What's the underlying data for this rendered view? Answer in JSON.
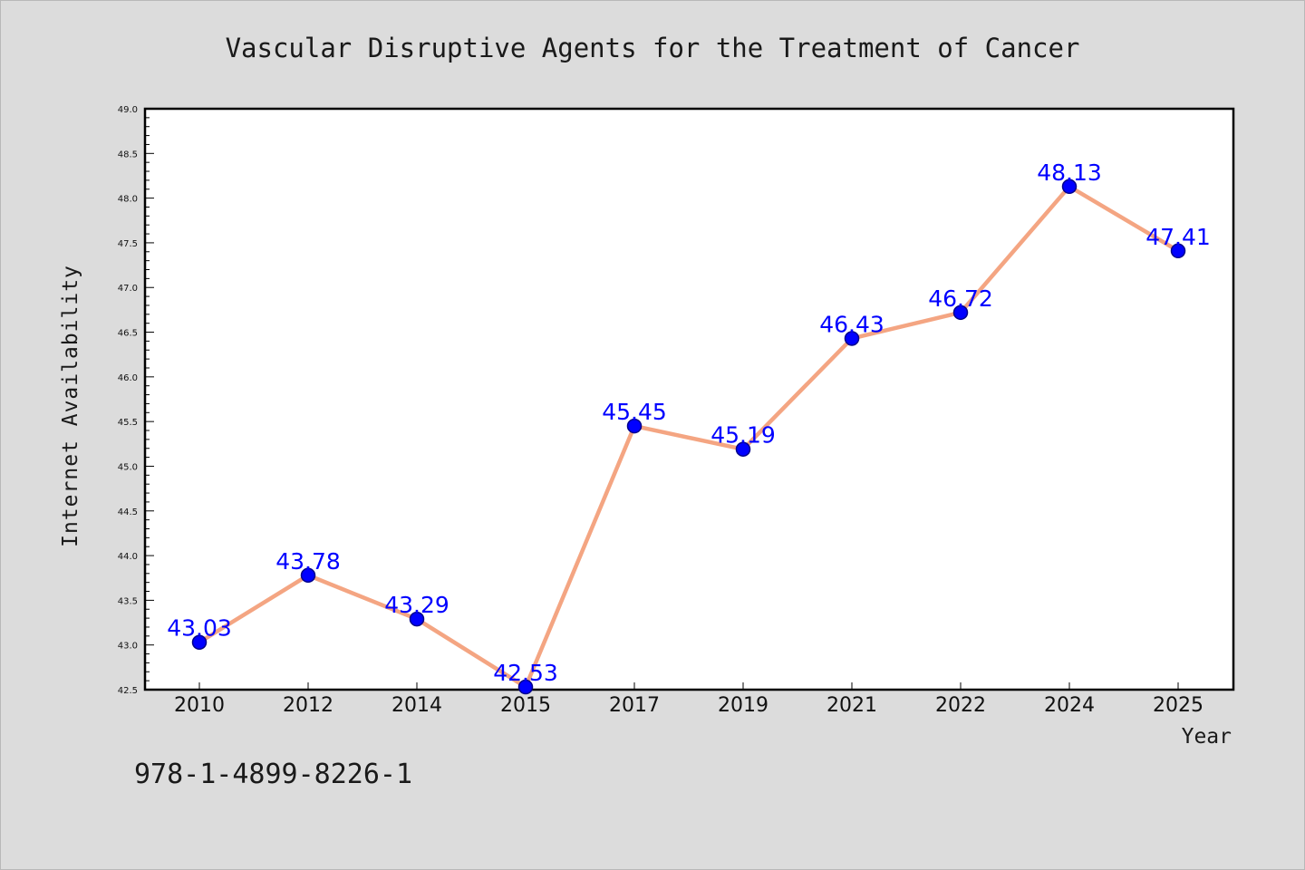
{
  "colors": {
    "background": "#dcdcdc",
    "plot_background": "#ffffff",
    "line": "#f4a582",
    "marker_fill": "#0000ff",
    "marker_edge": "#00008b",
    "data_label": "#0000ff",
    "axis": "#000000"
  },
  "footer_text": "978-1-4899-8226-1",
  "chart_data": {
    "type": "line",
    "title": "Vascular Disruptive Agents for the Treatment of Cancer",
    "xlabel": "Year",
    "ylabel": "Internet Availability",
    "categories": [
      "2010",
      "2012",
      "2014",
      "2015",
      "2017",
      "2019",
      "2021",
      "2022",
      "2024",
      "2025"
    ],
    "series": [
      {
        "values": [
          43.03,
          43.78,
          43.29,
          42.53,
          45.45,
          45.19,
          46.43,
          46.72,
          48.13,
          47.41
        ],
        "labels": [
          "43.03",
          "43.78",
          "43.29",
          "42.53",
          "45.45",
          "45.19",
          "46.43",
          "46.72",
          "48.13",
          "47.41"
        ]
      }
    ],
    "ylim": [
      42.5,
      49.0
    ],
    "yticks": [
      "42.5",
      "43.0",
      "43.5",
      "44.0",
      "44.5",
      "45.0",
      "45.5",
      "46.0",
      "46.5",
      "47.0",
      "47.5",
      "48.0",
      "48.5",
      "49.0"
    ],
    "grid": false,
    "legend": "none"
  }
}
